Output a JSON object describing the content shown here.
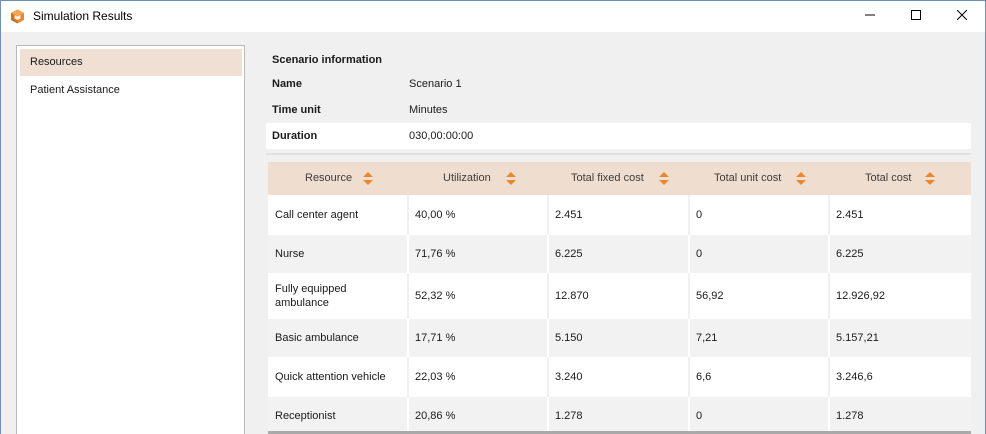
{
  "window": {
    "title": "Simulation Results",
    "icon": "app-cube-icon",
    "controls": {
      "minimize": "minimize-icon",
      "maximize": "maximize-icon",
      "close": "close-icon"
    }
  },
  "sidebar": {
    "items": [
      {
        "label": "Resources",
        "selected": true
      },
      {
        "label": "Patient Assistance",
        "selected": false
      }
    ]
  },
  "scenario": {
    "header": "Scenario information",
    "fields": [
      {
        "label": "Name",
        "value": "Scenario 1"
      },
      {
        "label": "Time unit",
        "value": "Minutes"
      },
      {
        "label": "Duration",
        "value": "030,00:00:00"
      }
    ]
  },
  "table": {
    "columns": [
      "Resource",
      "Utilization",
      "Total fixed cost",
      "Total unit cost",
      "Total cost"
    ],
    "sort_icon": "sort-updown-icon",
    "rows": [
      {
        "resource": "Call center agent",
        "utilization": "40,00 %",
        "fixed": "2.451",
        "unit": "0",
        "total": "2.451"
      },
      {
        "resource": "Nurse",
        "utilization": "71,76 %",
        "fixed": "6.225",
        "unit": "0",
        "total": "6.225"
      },
      {
        "resource": "Fully equipped ambulance",
        "utilization": "52,32 %",
        "fixed": "12.870",
        "unit": "56,92",
        "total": "12.926,92"
      },
      {
        "resource": "Basic ambulance",
        "utilization": "17,71 %",
        "fixed": "5.150",
        "unit": "7,21",
        "total": "5.157,21"
      },
      {
        "resource": "Quick attention vehicle",
        "utilization": "22,03 %",
        "fixed": "3.240",
        "unit": "6,6",
        "total": "3.246,6"
      },
      {
        "resource": "Receptionist",
        "utilization": "20,86 %",
        "fixed": "1.278",
        "unit": "0",
        "total": "1.278"
      }
    ]
  },
  "colors": {
    "accent": "#e8872d",
    "header_bg": "#efdecf",
    "selected_bg": "#efe0d3"
  }
}
